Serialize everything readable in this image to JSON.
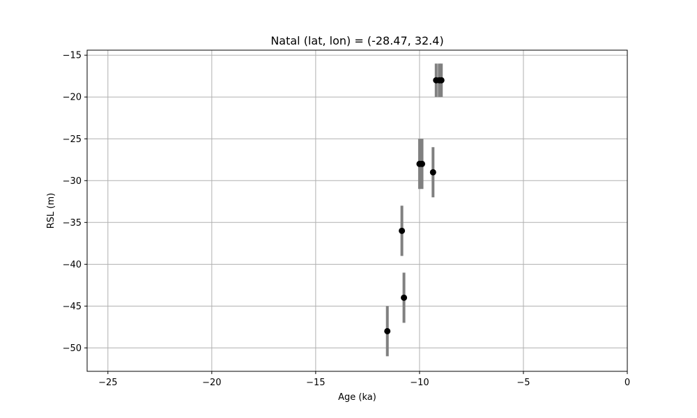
{
  "chart_data": {
    "type": "scatter",
    "title": "Natal (lat, lon) = (-28.47, 32.4)",
    "xlabel": "Age (ka)",
    "ylabel": "RSL (m)",
    "xlim": [
      -26,
      0
    ],
    "ylim": [
      -52.8,
      -14.4
    ],
    "xticks": [
      -25,
      -20,
      -15,
      -10,
      -5,
      0
    ],
    "yticks": [
      -50,
      -45,
      -40,
      -35,
      -30,
      -25,
      -20,
      -15
    ],
    "grid": true,
    "marker_color": "#000000",
    "errorbar_color": "#808080",
    "points": [
      {
        "x": -11.55,
        "y": -48,
        "yerr_low": -51,
        "yerr_high": -45
      },
      {
        "x": -10.75,
        "y": -44,
        "yerr_low": -47,
        "yerr_high": -41
      },
      {
        "x": -10.85,
        "y": -36,
        "yerr_low": -39,
        "yerr_high": -33
      },
      {
        "x": -10.0,
        "y": -28,
        "yerr_low": -31,
        "yerr_high": -25
      },
      {
        "x": -9.88,
        "y": -28,
        "yerr_low": -31,
        "yerr_high": -25
      },
      {
        "x": -9.35,
        "y": -29,
        "yerr_low": -32,
        "yerr_high": -26
      },
      {
        "x": -9.2,
        "y": -18,
        "yerr_low": -20,
        "yerr_high": -16
      },
      {
        "x": -9.05,
        "y": -18,
        "yerr_low": -20,
        "yerr_high": -16
      },
      {
        "x": -8.95,
        "y": -18,
        "yerr_low": -20,
        "yerr_high": -16
      }
    ]
  }
}
